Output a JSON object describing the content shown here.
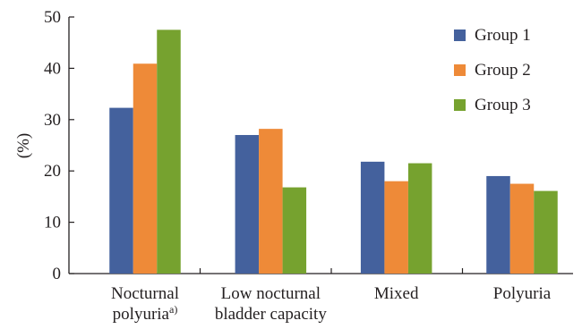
{
  "chart_data": {
    "type": "bar",
    "title": "",
    "xlabel": "",
    "ylabel": "(%)",
    "ylim": [
      0,
      50
    ],
    "yticks": [
      0,
      10,
      20,
      30,
      40,
      50
    ],
    "grid": false,
    "legend_position": "top-right",
    "categories": [
      {
        "lines": [
          "Nocturnal",
          "polyuria"
        ],
        "superscript": "a)"
      },
      {
        "lines": [
          "Low nocturnal",
          "bladder capacity"
        ],
        "superscript": ""
      },
      {
        "lines": [
          "Mixed"
        ],
        "superscript": ""
      },
      {
        "lines": [
          "Polyuria"
        ],
        "superscript": ""
      }
    ],
    "series": [
      {
        "name": "Group 1",
        "color": "#44619d",
        "values": [
          32.3,
          27.0,
          21.8,
          19.0
        ]
      },
      {
        "name": "Group 2",
        "color": "#ee8a38",
        "values": [
          40.9,
          28.2,
          18.0,
          17.5
        ]
      },
      {
        "name": "Group 3",
        "color": "#76a22f",
        "values": [
          47.5,
          16.8,
          21.5,
          16.1
        ]
      }
    ]
  }
}
